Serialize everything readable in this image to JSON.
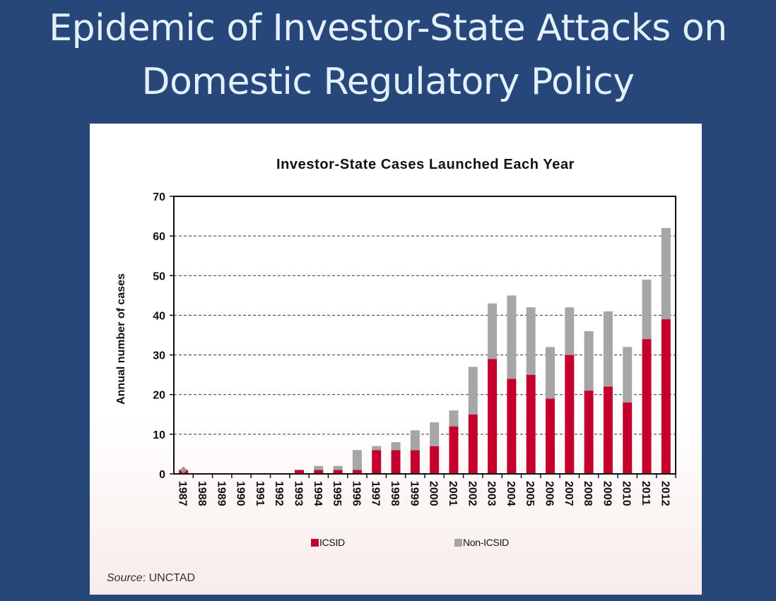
{
  "slide": {
    "title_line1": "Epidemic of Investor-State Attacks on",
    "title_line2": "Domestic Regulatory Policy"
  },
  "colors": {
    "background": "#27467a",
    "title_text": "#e2f1fb",
    "icsid": "#c4002c",
    "non_icsid": "#a6a6a6"
  },
  "chart_data": {
    "type": "bar",
    "stacked": true,
    "title": "Investor-State Cases Launched Each Year",
    "xlabel": "",
    "ylabel": "Annual number of cases",
    "ylim": [
      0,
      70
    ],
    "yticks": [
      0,
      10,
      20,
      30,
      40,
      50,
      60,
      70
    ],
    "grid": "horizontal dashed",
    "legend": "bottom",
    "categories": [
      "1987",
      "1988",
      "1989",
      "1990",
      "1991",
      "1992",
      "1993",
      "1994",
      "1995",
      "1996",
      "1997",
      "1998",
      "1999",
      "2000",
      "2001",
      "2002",
      "2003",
      "2004",
      "2005",
      "2006",
      "2007",
      "2008",
      "2009",
      "2010",
      "2011",
      "2012"
    ],
    "series": [
      {
        "name": "ICSID",
        "color": "#c4002c",
        "values": [
          1,
          0,
          0,
          0,
          0,
          0,
          1,
          1,
          1,
          1,
          6,
          6,
          6,
          7,
          12,
          15,
          29,
          24,
          25,
          19,
          30,
          21,
          22,
          18,
          34,
          39
        ]
      },
      {
        "name": "Non-ICSID",
        "color": "#a6a6a6",
        "values": [
          0,
          0,
          0,
          0,
          0,
          0,
          0,
          1,
          1,
          5,
          1,
          2,
          5,
          6,
          4,
          12,
          14,
          21,
          17,
          13,
          12,
          15,
          19,
          14,
          15,
          23
        ]
      }
    ],
    "source_label": "Source",
    "source_value": ": UNCTAD"
  }
}
